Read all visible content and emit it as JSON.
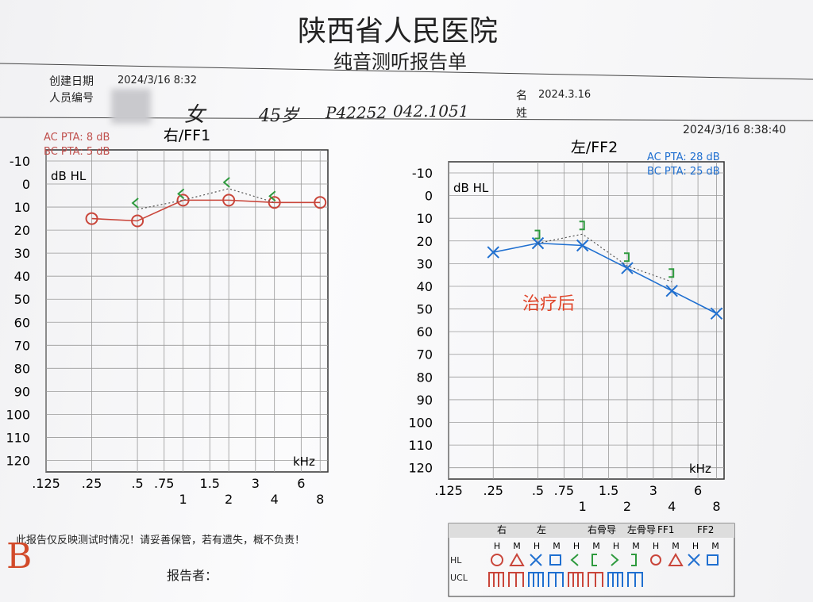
{
  "header": {
    "title": "陕西省人民医院",
    "subtitle": "纯音测听报告单",
    "created_label": "创建日期",
    "created": "2024/3/16 8:32",
    "id_label": "人员编号",
    "name_label": "名",
    "name_value": "2024.3.16",
    "surname_label": "姓",
    "printed": "2024/3/16 8:38:40",
    "handwriting": [
      "女",
      "45岁",
      "P42252",
      "042.1051"
    ]
  },
  "chart_data": [
    {
      "type": "line",
      "title": "右/FF1",
      "annotations": [
        {
          "text": "AC PTA: 8 dB",
          "color": "#c0504d"
        },
        {
          "text": "BC PTA: 5 dB",
          "color": "#c0504d"
        }
      ],
      "ylabel": "dB HL",
      "xlabel": "kHz",
      "log_x": true,
      "grid": true,
      "xlim": [
        0.125,
        9
      ],
      "xticks": [
        {
          "value": 0.125,
          "label": ".125"
        },
        {
          "value": 0.25,
          "label": ".25"
        },
        {
          "value": 0.5,
          "label": ".5"
        },
        {
          "value": 0.75,
          "label": ".75"
        },
        1,
        1.5,
        2,
        3,
        4,
        6,
        8
      ],
      "ylim": [
        -10,
        125
      ],
      "yticks": [
        -10,
        0,
        10,
        20,
        30,
        40,
        50,
        60,
        70,
        80,
        90,
        100,
        110,
        120
      ],
      "y_inverted": true,
      "series": [
        {
          "marker": "circle",
          "color": "#c9453a",
          "dash": false,
          "x": [
            0.25,
            0.5,
            1,
            2,
            4,
            8
          ],
          "values": [
            15,
            16,
            7,
            7,
            8,
            8
          ]
        },
        {
          "marker": "bracket-left",
          "color": "#2e9a3e",
          "line_color": "#555555",
          "dash": true,
          "x": [
            0.5,
            1,
            2,
            4
          ],
          "values": [
            11,
            7,
            2,
            8
          ]
        }
      ]
    },
    {
      "type": "line",
      "title": "左/FF2",
      "annotations": [
        {
          "text": "AC PTA: 28 dB",
          "color": "#1f6fd0"
        },
        {
          "text": "BC PTA: 25 dB",
          "color": "#1f6fd0"
        }
      ],
      "note": {
        "text": "治疗后",
        "color": "#e0452a"
      },
      "ylabel": "dB HL",
      "xlabel": "kHz",
      "log_x": true,
      "grid": true,
      "xlim": [
        0.125,
        9
      ],
      "xticks": [
        {
          "value": 0.125,
          "label": ".125"
        },
        {
          "value": 0.25,
          "label": ".25"
        },
        {
          "value": 0.5,
          "label": ".5"
        },
        {
          "value": 0.75,
          "label": ".75"
        },
        1,
        1.5,
        2,
        3,
        4,
        6,
        8
      ],
      "ylim": [
        -10,
        125
      ],
      "yticks": [
        -10,
        0,
        10,
        20,
        30,
        40,
        50,
        60,
        70,
        80,
        90,
        100,
        110,
        120
      ],
      "y_inverted": true,
      "series": [
        {
          "marker": "cross",
          "color": "#1f6fd0",
          "dash": false,
          "x": [
            0.25,
            0.5,
            1,
            2,
            4,
            8
          ],
          "values": [
            25,
            21,
            22,
            32,
            42,
            52
          ]
        },
        {
          "marker": "bracket-right",
          "color": "#2e9a3e",
          "line_color": "#555555",
          "dash": true,
          "x": [
            0.5,
            1,
            2,
            4
          ],
          "values": [
            21,
            17,
            31,
            38
          ]
        }
      ]
    }
  ],
  "footer": {
    "notice": "此报告仅反映测试时情况！请妥善保管，若有遗失，概不负责！",
    "reporter_label": "报告者：",
    "panel_label": "B"
  },
  "legend": {
    "groups": [
      "右",
      "左",
      "右骨导",
      "左骨导",
      "FF1",
      "FF2"
    ],
    "sub": [
      "H",
      "M"
    ],
    "rows": [
      "HL",
      "UCL"
    ]
  }
}
